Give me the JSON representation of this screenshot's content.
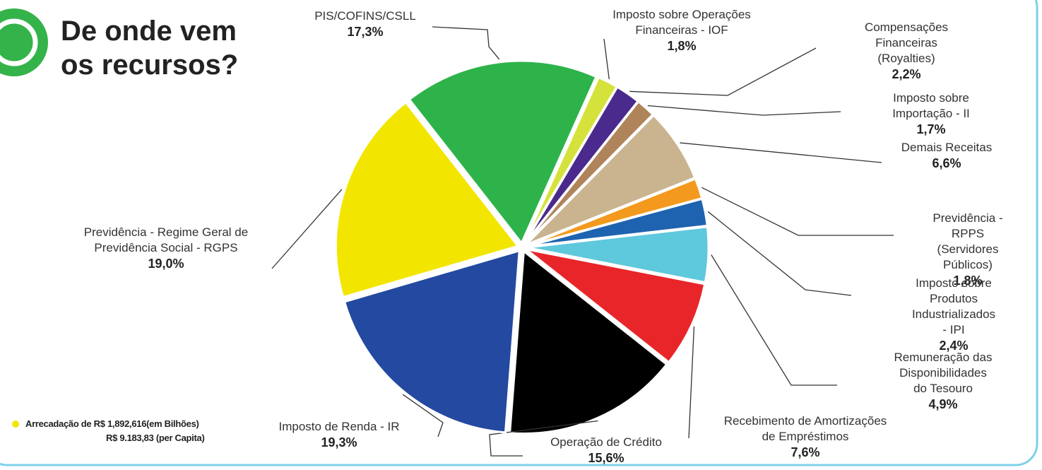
{
  "chart_data": {
    "type": "pie",
    "title": [
      "De onde vem",
      "os recursos?"
    ],
    "categories": [
      "PIS/COFINS/CSLL",
      "Imposto sobre Operações\nFinanceiras - IOF",
      "Compensações Financeiras\n(Royalties)",
      "Imposto sobre Importação - II",
      "Demais Receitas",
      "Previdência - RPPS\n(Servidores Públicos)",
      "Imposto sobre Produtos\nIndustrializados - IPI",
      "Remuneração das\nDisponibilidades do Tesouro",
      "Recebimento de Amortizações\nde Empréstimos",
      "Operação de Crédito",
      "Imposto de Renda - IR",
      "Previdência - Regime Geral de\nPrevidência Social - RGPS"
    ],
    "values": [
      17.3,
      1.8,
      2.2,
      1.7,
      6.6,
      1.8,
      2.4,
      4.9,
      7.6,
      15.6,
      19.3,
      19.0
    ],
    "value_labels": [
      "17,3%",
      "1,8%",
      "2,2%",
      "1,7%",
      "6,6%",
      "1,8%",
      "2,4%",
      "4,9%",
      "7,6%",
      "15,6%",
      "19,3%",
      "19,0%"
    ],
    "colors": [
      "#2db34a",
      "#d6e23c",
      "#4a2a8c",
      "#b0845a",
      "#c9b48f",
      "#f39a1e",
      "#1e63b0",
      "#5ec8dc",
      "#e8262a",
      "#000000",
      "#2449a0",
      "#f2e600"
    ],
    "notes": [
      "Arrecadação de R$ 1,892,616(em Bilhões)",
      "R$ 9.183,83 (per Capita)"
    ]
  }
}
